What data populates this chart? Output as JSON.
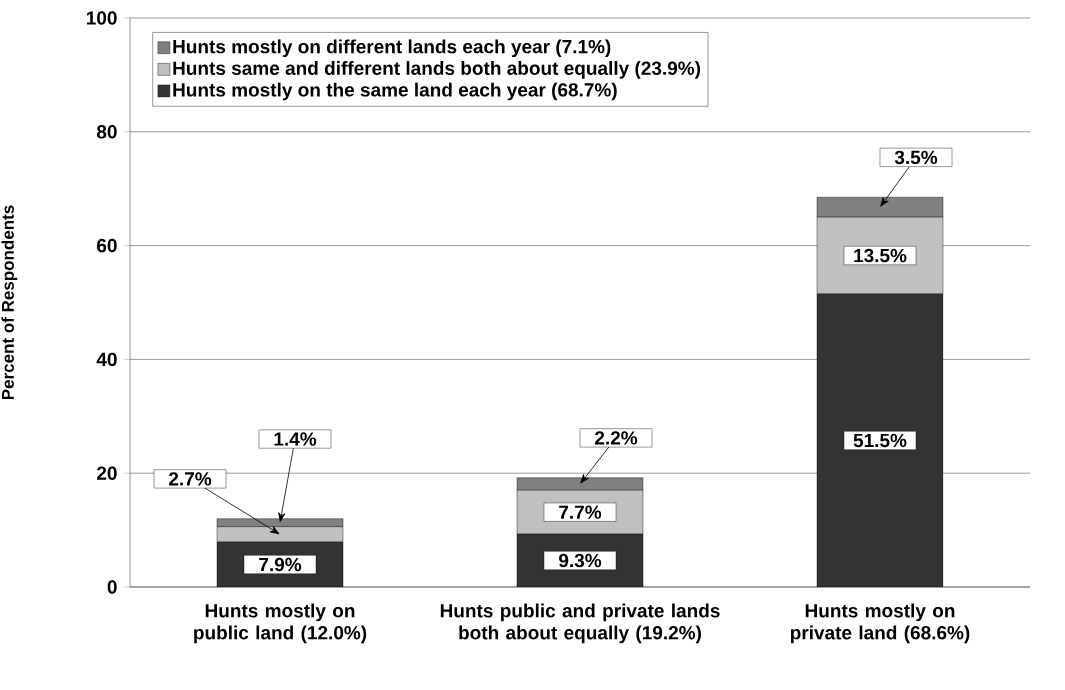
{
  "chart_data": {
    "type": "bar",
    "stacked": true,
    "ylabel": "Percent of Respondents",
    "categories": [
      "Hunts mostly on public land (12.0%)",
      "Hunts public and private lands both about equally (19.2%)",
      "Hunts mostly on private land (68.6%)"
    ],
    "series": [
      {
        "name": "Hunts mostly on the same land each year (68.7%)",
        "color": "#333333",
        "values": [
          7.9,
          9.3,
          51.5
        ],
        "value_labels": [
          "7.9%",
          "9.3%",
          "51.5%"
        ]
      },
      {
        "name": "Hunts same and different lands both about equally (23.9%)",
        "color": "#c0c0c0",
        "values": [
          2.7,
          7.7,
          13.5
        ],
        "value_labels": [
          "2.7%",
          "7.7%",
          "13.5%"
        ]
      },
      {
        "name": "Hunts mostly on different lands each year (7.1%)",
        "color": "#808080",
        "values": [
          1.4,
          2.2,
          3.5
        ],
        "value_labels": [
          "1.4%",
          "2.2%",
          "3.5%"
        ]
      }
    ],
    "ylim": [
      0,
      100
    ],
    "yticks": [
      0,
      20,
      40,
      60,
      80,
      100
    ],
    "grid": "y",
    "legend": "top left"
  }
}
